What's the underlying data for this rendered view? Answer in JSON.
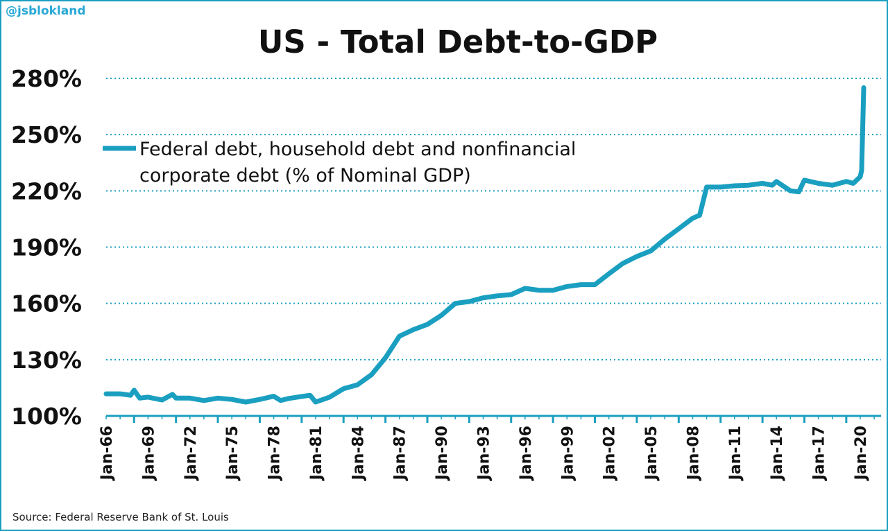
{
  "handle": "@jsblokland",
  "source": "Source: Federal Reserve Bank of St. Louis",
  "colors": {
    "line": "#1a9fc0",
    "grid": "#1a9fc0",
    "frame": "#1a9fc0"
  },
  "chart_data": {
    "type": "line",
    "title": "US - Total Debt-to-GDP",
    "xlabel": "",
    "ylabel": "",
    "ylim": [
      100,
      280
    ],
    "xlim": [
      "Jan-66",
      "Jan-20"
    ],
    "grid": true,
    "legend_position": "top-left",
    "y_ticks": [
      "100%",
      "130%",
      "160%",
      "190%",
      "220%",
      "250%",
      "280%"
    ],
    "x_ticks": [
      "Jan-66",
      "Jan-69",
      "Jan-72",
      "Jan-75",
      "Jan-78",
      "Jan-81",
      "Jan-84",
      "Jan-87",
      "Jan-90",
      "Jan-93",
      "Jan-96",
      "Jan-99",
      "Jan-02",
      "Jan-05",
      "Jan-08",
      "Jan-11",
      "Jan-14",
      "Jan-17",
      "Jan-20"
    ],
    "series": [
      {
        "name": "Federal debt, household debt and nonfinancial corporate debt (% of Nominal GDP)",
        "legend_lines": [
          "Federal debt, household debt and nonfinancial",
          "corporate debt (% of Nominal GDP)"
        ],
        "x": [
          1966,
          1967,
          1967.75,
          1968,
          1968.4,
          1969,
          1970,
          1970.75,
          1971,
          1972,
          1973,
          1974,
          1975,
          1976,
          1977,
          1978,
          1978.5,
          1979,
          1980,
          1980.6,
          1981,
          1982,
          1983,
          1984,
          1985,
          1986,
          1987,
          1988,
          1989,
          1990,
          1991,
          1992,
          1993,
          1994,
          1995,
          1996,
          1997,
          1998,
          1999,
          2000,
          2001,
          2002,
          2003,
          2004,
          2005,
          2006,
          2007,
          2008,
          2008.5,
          2009,
          2010,
          2011,
          2012,
          2013,
          2013.7,
          2014,
          2015,
          2015.6,
          2016,
          2017,
          2018,
          2019,
          2019.5,
          2020,
          2020.1,
          2020.25
        ],
        "y": [
          111.8,
          111.8,
          111,
          113.7,
          109.5,
          110,
          108.5,
          111.5,
          109.5,
          109.5,
          108.2,
          109.5,
          108.8,
          107.4,
          108.8,
          110.5,
          108.2,
          109.2,
          110.4,
          111,
          107.4,
          110,
          114.5,
          116.6,
          122,
          131,
          142.5,
          146,
          148.8,
          153.6,
          160,
          161,
          163,
          164,
          164.7,
          168,
          167,
          167,
          169,
          170,
          170,
          175.8,
          181.3,
          185,
          188,
          194.3,
          199.8,
          205.4,
          207,
          222,
          222,
          222.7,
          223,
          224,
          223,
          225,
          220,
          219.5,
          225.7,
          224,
          223,
          225,
          224,
          227.5,
          231,
          275
        ]
      }
    ]
  }
}
